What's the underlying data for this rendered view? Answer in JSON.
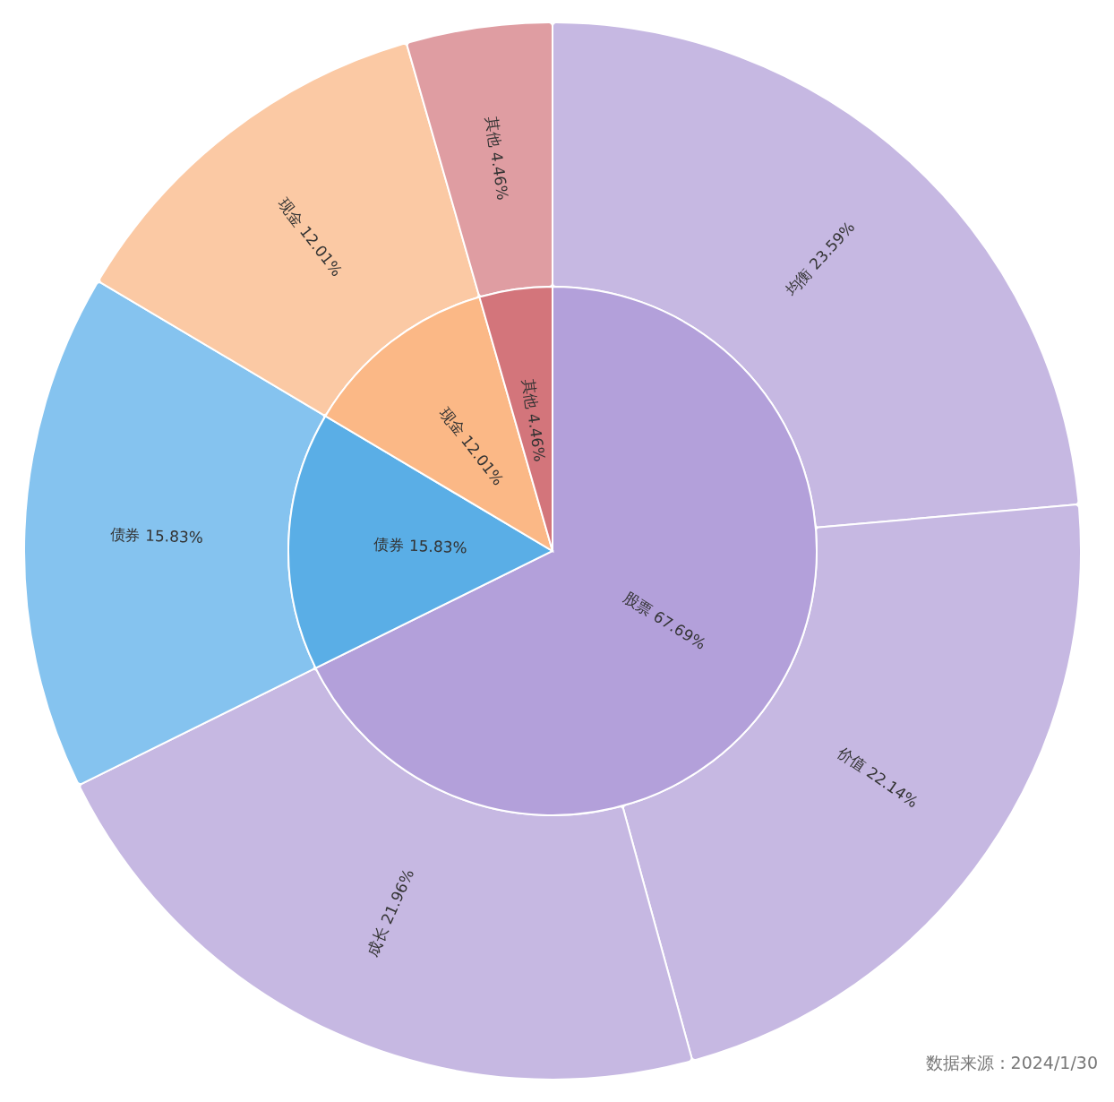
{
  "chart_data": [
    {
      "type": "pie",
      "categories": [
        "股票",
        "债券",
        "现金",
        "其他"
      ],
      "values": [
        67.69,
        15.83,
        12.01,
        4.46
      ],
      "colors": [
        "#b3a0da",
        "#5aaee6",
        "#fbb886",
        "#d3757b"
      ],
      "value_labels": [
        "67.69%",
        "15.83%",
        "12.01%",
        "4.46%"
      ],
      "legend": false
    },
    {
      "type": "donut",
      "categories": [
        "均衡",
        "价值",
        "成长",
        "债券",
        "现金",
        "其他"
      ],
      "values": [
        23.59,
        22.14,
        21.96,
        15.83,
        12.01,
        4.46
      ],
      "colors": [
        "#c6b8e2",
        "#c6b8e2",
        "#c6b8e2",
        "#85c3ef",
        "#fbc9a4",
        "#df9da2"
      ],
      "value_labels": [
        "23.59%",
        "22.14%",
        "21.96%",
        "15.83%",
        "12.01%",
        "4.46%"
      ],
      "annotations": [
        "数据来源：2024/1/30"
      ],
      "legend": false
    }
  ]
}
